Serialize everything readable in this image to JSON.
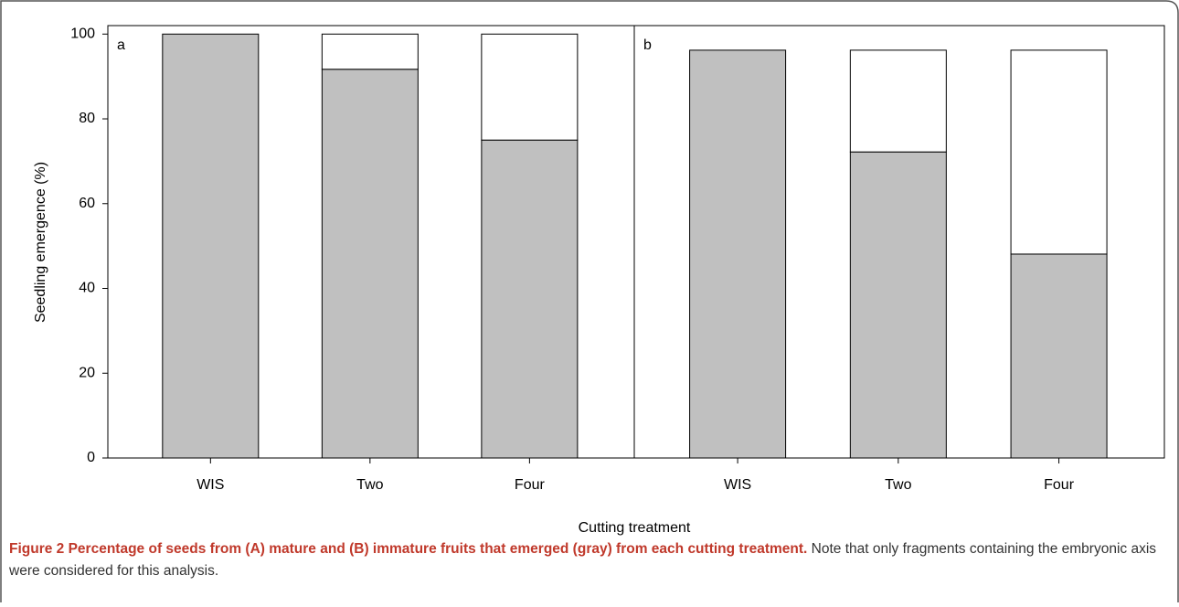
{
  "chart_data": [
    {
      "type": "bar",
      "stacked": true,
      "panel_label": "a",
      "categories": [
        "WIS",
        "Two",
        "Four"
      ],
      "series": [
        {
          "color": "#c0c0c0",
          "values": [
            100,
            91.7,
            75
          ]
        },
        {
          "color": "#ffffff",
          "values": [
            0,
            8.3,
            25
          ]
        }
      ],
      "ylim": [
        0,
        102
      ],
      "yticks": [
        0,
        20,
        40,
        60,
        80,
        100
      ],
      "y_label": "Seedling emergence (%)"
    },
    {
      "type": "bar",
      "stacked": true,
      "panel_label": "b",
      "categories": [
        "WIS",
        "Two",
        "Four"
      ],
      "series": [
        {
          "color": "#c0c0c0",
          "values": [
            96.2,
            72.2,
            48.1
          ]
        },
        {
          "color": "#ffffff",
          "values": [
            0,
            24,
            48.1
          ]
        }
      ],
      "ylim": [
        0,
        102
      ]
    }
  ],
  "x_label": "Cutting treatment",
  "caption": {
    "title": "Figure 2 Percentage of seeds from (A) mature and (B) immature fruits that emerged (gray) from each cutting treatment.",
    "text": "Note that only fragments containing the embryonic axis were considered for this analysis."
  }
}
